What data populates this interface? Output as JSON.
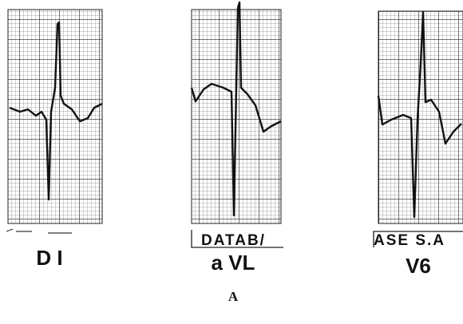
{
  "figure": {
    "leads": [
      {
        "label": "D I"
      },
      {
        "label": "a VL"
      },
      {
        "label": "V6"
      }
    ],
    "stamp": [
      "DATAB/",
      "ASE S.A"
    ],
    "panel_label": "A"
  }
}
